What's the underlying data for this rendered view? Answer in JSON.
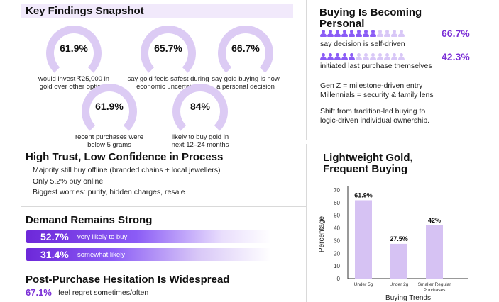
{
  "colors": {
    "accent": "#7b2fd6",
    "soft": "#dccbf4",
    "bar": "#d6c2f3"
  },
  "key_findings": {
    "title": "Key Findings Snapshot",
    "stats": [
      {
        "value": "61.9%",
        "caption_1": "would invest ₹25,000 in",
        "caption_2": "gold over other options"
      },
      {
        "value": "65.7%",
        "caption_1": "say gold feels safest during",
        "caption_2": "economic uncertainty"
      },
      {
        "value": "66.7%",
        "caption_1": "say gold buying is now",
        "caption_2": "a personal decision"
      },
      {
        "value": "61.9%",
        "caption_1": "recent purchases were",
        "caption_2": "below 5 grams"
      },
      {
        "value": "84%",
        "caption_1": "likely to buy gold in",
        "caption_2": "next 12–24 months"
      }
    ]
  },
  "personal": {
    "title_1": "Buying Is Becoming",
    "title_2": "Personal",
    "row1_pct": "66.7%",
    "row1_label": "say decision is self-driven",
    "row2_pct": "42.3%",
    "row2_label": "initiated last purchase themselves",
    "note_1": "Gen Z = milestone-driven entry",
    "note_2": "Millennials = security & family lens",
    "note_3": "Shift from tradition-led buying to",
    "note_4": "logic-driven individual ownership."
  },
  "trust": {
    "title": "High Trust, Low Confidence in Process",
    "line_1": "Majority still buy offline (branded chains + local jewellers)",
    "line_2": "Only 5.2% buy online",
    "line_3": "Biggest worries: purity, hidden charges, resale"
  },
  "demand": {
    "title": "Demand Remains Strong",
    "bar1_value": "52.7%",
    "bar1_label": "very likely to buy",
    "bar2_value": "31.4%",
    "bar2_label": "somewhat likely"
  },
  "hesitation": {
    "title": "Post-Purchase Hesitation Is Widespread",
    "value": "67.1%",
    "label": "feel regret sometimes/often"
  },
  "lightweight": {
    "title_1": "Lightweight Gold,",
    "title_2": "Frequent Buying"
  },
  "chart_data": {
    "type": "bar",
    "categories": [
      "Under 5g",
      "Under 2g",
      "Smaller Regular Purchases"
    ],
    "values": [
      61.9,
      27.5,
      42
    ],
    "data_labels": [
      "61.9%",
      "27.5%",
      "42%"
    ],
    "xlabel": "Buying Trends",
    "ylabel": "Percentage",
    "ylim": [
      0,
      70
    ],
    "yticks": [
      0,
      10,
      20,
      30,
      40,
      50,
      60,
      70
    ],
    "grid": false
  }
}
